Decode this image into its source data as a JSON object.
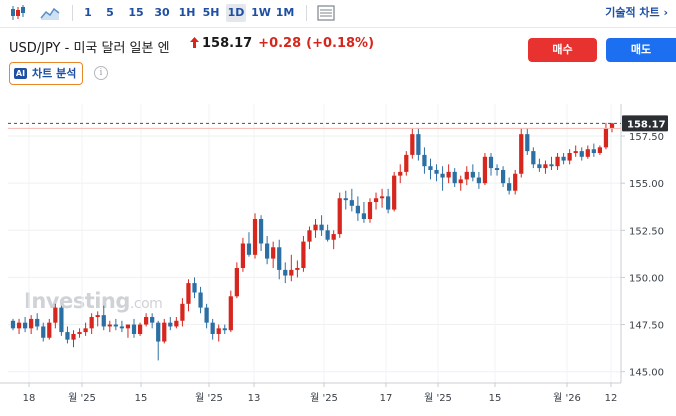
{
  "toolbar": {
    "timeframes": [
      "1",
      "5",
      "15",
      "30",
      "1H",
      "5H",
      "1D",
      "1W",
      "1M"
    ],
    "active_timeframe": "1D",
    "tech_chart_label": "기술적 차트 ›",
    "icons": [
      "candlestick-icon",
      "area-chart-icon",
      "chart-type-icon"
    ]
  },
  "header": {
    "pair_name": "USD/JPY - 미국 달러 일본 엔",
    "price": "158.17",
    "change": "+0.28",
    "change_pct": "(+0.18%)",
    "direction_icon": "up-arrow-icon",
    "buy_label": "매수",
    "sell_label": "매도",
    "analysis_badge": "AI",
    "analysis_label": "차트 분석"
  },
  "watermark": {
    "brand": "Investing",
    "suffix": ".com"
  },
  "colors": {
    "up": "#d6261d",
    "down": "#2c6fa3",
    "accent": "#1e4fa3",
    "buy": "#e8322f",
    "sell": "#1b6ff0"
  },
  "chart_data": {
    "type": "candlestick",
    "last_price_label": "158.17",
    "y_ticks": [
      "157.50",
      "155.00",
      "152.50",
      "150.00",
      "147.50",
      "145.00"
    ],
    "ylim": [
      144.4,
      159.2
    ],
    "x_ticks": [
      "18",
      "월 '25",
      "15",
      "월 '25",
      "13",
      "월 '25",
      "17",
      "월 '25",
      "15",
      "월 '26",
      "12"
    ],
    "candles": [
      [
        147.7,
        147.8,
        147.2,
        147.3
      ],
      [
        147.3,
        147.8,
        147.0,
        147.6
      ],
      [
        147.6,
        147.9,
        147.1,
        147.3
      ],
      [
        147.3,
        148.0,
        147.0,
        147.8
      ],
      [
        147.8,
        148.1,
        147.2,
        147.4
      ],
      [
        147.4,
        147.6,
        146.6,
        146.8
      ],
      [
        146.8,
        147.8,
        146.7,
        147.6
      ],
      [
        147.6,
        148.6,
        147.3,
        148.4
      ],
      [
        148.4,
        148.5,
        146.9,
        147.1
      ],
      [
        147.1,
        147.4,
        146.5,
        146.7
      ],
      [
        146.7,
        147.2,
        146.3,
        147.0
      ],
      [
        147.0,
        147.3,
        146.8,
        147.1
      ],
      [
        147.1,
        147.6,
        146.9,
        147.3
      ],
      [
        147.3,
        148.1,
        147.0,
        147.9
      ],
      [
        147.9,
        148.2,
        147.4,
        148.0
      ],
      [
        148.0,
        148.5,
        147.2,
        147.4
      ],
      [
        147.4,
        147.7,
        147.1,
        147.5
      ],
      [
        147.5,
        147.8,
        147.2,
        147.4
      ],
      [
        147.4,
        147.7,
        147.1,
        147.3
      ],
      [
        147.3,
        147.5,
        146.8,
        147.5
      ],
      [
        147.5,
        147.8,
        146.8,
        147.0
      ],
      [
        147.0,
        147.6,
        146.9,
        147.5
      ],
      [
        147.5,
        148.1,
        147.4,
        147.9
      ],
      [
        147.9,
        148.1,
        147.3,
        147.6
      ],
      [
        147.6,
        147.7,
        145.6,
        146.6
      ],
      [
        146.6,
        147.8,
        146.5,
        147.6
      ],
      [
        147.6,
        147.9,
        147.2,
        147.4
      ],
      [
        147.4,
        147.9,
        147.3,
        147.7
      ],
      [
        147.7,
        148.9,
        147.4,
        148.6
      ],
      [
        148.6,
        149.9,
        148.2,
        149.7
      ],
      [
        149.7,
        150.0,
        148.9,
        149.2
      ],
      [
        149.2,
        149.5,
        148.1,
        148.4
      ],
      [
        148.4,
        148.6,
        147.3,
        147.6
      ],
      [
        147.6,
        147.8,
        146.7,
        147.0
      ],
      [
        147.0,
        147.5,
        146.6,
        147.3
      ],
      [
        147.3,
        147.5,
        147.0,
        147.2
      ],
      [
        147.2,
        149.3,
        147.1,
        149.0
      ],
      [
        149.0,
        150.8,
        148.9,
        150.5
      ],
      [
        150.5,
        152.1,
        150.3,
        151.8
      ],
      [
        151.8,
        152.4,
        151.1,
        151.2
      ],
      [
        151.2,
        153.4,
        151.0,
        153.1
      ],
      [
        153.1,
        153.3,
        151.4,
        151.8
      ],
      [
        151.8,
        152.2,
        150.7,
        151.0
      ],
      [
        151.0,
        151.9,
        150.5,
        151.6
      ],
      [
        151.6,
        152.0,
        149.9,
        150.4
      ],
      [
        150.4,
        150.8,
        149.7,
        150.1
      ],
      [
        150.1,
        151.2,
        149.8,
        150.4
      ],
      [
        150.4,
        150.9,
        150.0,
        150.5
      ],
      [
        150.5,
        152.2,
        150.3,
        151.9
      ],
      [
        151.9,
        152.7,
        151.5,
        152.5
      ],
      [
        152.5,
        153.1,
        152.1,
        152.8
      ],
      [
        152.8,
        153.3,
        152.2,
        152.5
      ],
      [
        152.5,
        152.8,
        151.9,
        152.0
      ],
      [
        152.0,
        152.5,
        151.5,
        152.3
      ],
      [
        152.3,
        154.5,
        152.1,
        154.2
      ],
      [
        154.2,
        154.6,
        153.6,
        154.1
      ],
      [
        154.1,
        154.7,
        153.5,
        153.8
      ],
      [
        153.8,
        154.3,
        153.0,
        153.4
      ],
      [
        153.4,
        154.0,
        152.9,
        153.1
      ],
      [
        153.1,
        154.2,
        152.9,
        154.0
      ],
      [
        154.0,
        154.5,
        153.6,
        154.2
      ],
      [
        154.2,
        154.7,
        153.7,
        154.3
      ],
      [
        154.3,
        154.7,
        153.4,
        153.6
      ],
      [
        153.6,
        155.6,
        153.5,
        155.4
      ],
      [
        155.4,
        156.0,
        155.0,
        155.6
      ],
      [
        155.6,
        156.7,
        155.4,
        156.5
      ],
      [
        156.5,
        157.9,
        156.3,
        157.6
      ],
      [
        157.6,
        157.9,
        156.2,
        156.5
      ],
      [
        156.5,
        156.9,
        155.5,
        155.9
      ],
      [
        155.9,
        156.3,
        155.2,
        155.7
      ],
      [
        155.7,
        156.0,
        155.1,
        155.5
      ],
      [
        155.5,
        155.9,
        154.6,
        155.3
      ],
      [
        155.3,
        156.0,
        155.0,
        155.6
      ],
      [
        155.6,
        155.8,
        154.8,
        155.0
      ],
      [
        155.0,
        155.4,
        154.6,
        155.2
      ],
      [
        155.2,
        155.9,
        154.9,
        155.6
      ],
      [
        155.6,
        156.0,
        155.1,
        155.3
      ],
      [
        155.3,
        155.6,
        154.7,
        155.0
      ],
      [
        155.0,
        156.6,
        154.9,
        156.4
      ],
      [
        156.4,
        156.6,
        155.4,
        155.8
      ],
      [
        155.8,
        156.0,
        155.4,
        155.7
      ],
      [
        155.7,
        155.9,
        154.8,
        155.0
      ],
      [
        155.0,
        155.3,
        154.4,
        154.6
      ],
      [
        154.6,
        155.7,
        154.4,
        155.5
      ],
      [
        155.5,
        157.9,
        155.3,
        157.6
      ],
      [
        157.6,
        157.9,
        156.5,
        156.7
      ],
      [
        156.7,
        156.9,
        155.8,
        156.0
      ],
      [
        156.0,
        156.3,
        155.6,
        155.8
      ],
      [
        155.8,
        156.2,
        155.5,
        156.0
      ],
      [
        156.0,
        156.4,
        155.7,
        155.9
      ],
      [
        155.9,
        156.6,
        155.7,
        156.4
      ],
      [
        156.4,
        156.6,
        156.0,
        156.2
      ],
      [
        156.2,
        156.8,
        156.0,
        156.6
      ],
      [
        156.6,
        157.0,
        156.4,
        156.7
      ],
      [
        156.7,
        156.9,
        156.2,
        156.4
      ],
      [
        156.4,
        157.0,
        156.3,
        156.8
      ],
      [
        156.8,
        157.1,
        156.4,
        156.6
      ],
      [
        156.6,
        157.0,
        156.5,
        156.9
      ],
      [
        156.9,
        158.2,
        156.8,
        157.9
      ],
      [
        157.9,
        158.2,
        157.7,
        158.17
      ]
    ]
  }
}
